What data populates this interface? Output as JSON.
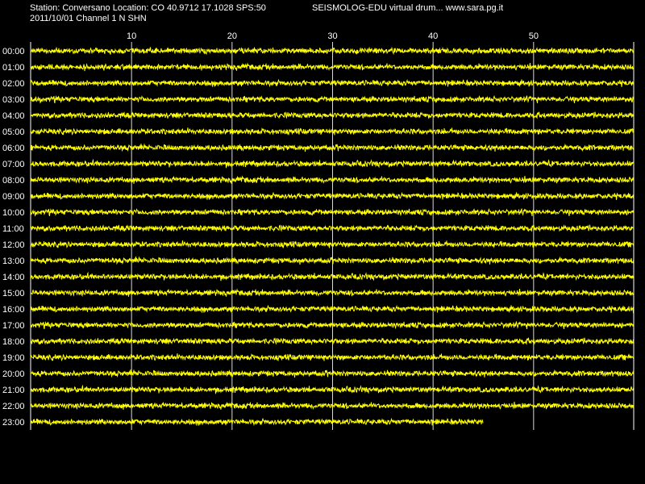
{
  "header": {
    "station_line": "Station: Conversano Location: CO 40.9712 17.1028 SPS:50",
    "date_line": "2011/10/01  Channel 1 N SHN",
    "title_right": "SEISMOLOG-EDU virtual drum... www.sara.pg.it"
  },
  "chart_data": {
    "type": "line",
    "x_unit": "minutes",
    "x_ticks": [
      10,
      20,
      30,
      40,
      50
    ],
    "xlim": [
      0,
      60
    ],
    "grid": "vertical",
    "background_color": "#000000",
    "trace_color": "#ffff00",
    "grid_color": "#ffffff",
    "rows": [
      {
        "label": "00:00",
        "minutes_recorded": 60
      },
      {
        "label": "01:00",
        "minutes_recorded": 60
      },
      {
        "label": "02:00",
        "minutes_recorded": 60
      },
      {
        "label": "03:00",
        "minutes_recorded": 60
      },
      {
        "label": "04:00",
        "minutes_recorded": 60
      },
      {
        "label": "05:00",
        "minutes_recorded": 60
      },
      {
        "label": "06:00",
        "minutes_recorded": 60
      },
      {
        "label": "07:00",
        "minutes_recorded": 60
      },
      {
        "label": "08:00",
        "minutes_recorded": 60
      },
      {
        "label": "09:00",
        "minutes_recorded": 60
      },
      {
        "label": "10:00",
        "minutes_recorded": 60
      },
      {
        "label": "11:00",
        "minutes_recorded": 60
      },
      {
        "label": "12:00",
        "minutes_recorded": 60
      },
      {
        "label": "13:00",
        "minutes_recorded": 60
      },
      {
        "label": "14:00",
        "minutes_recorded": 60
      },
      {
        "label": "15:00",
        "minutes_recorded": 60
      },
      {
        "label": "16:00",
        "minutes_recorded": 60
      },
      {
        "label": "17:00",
        "minutes_recorded": 60
      },
      {
        "label": "18:00",
        "minutes_recorded": 60
      },
      {
        "label": "19:00",
        "minutes_recorded": 60
      },
      {
        "label": "20:00",
        "minutes_recorded": 60
      },
      {
        "label": "21:00",
        "minutes_recorded": 60
      },
      {
        "label": "22:00",
        "minutes_recorded": 60
      },
      {
        "label": "23:00",
        "minutes_recorded": 45
      }
    ]
  }
}
